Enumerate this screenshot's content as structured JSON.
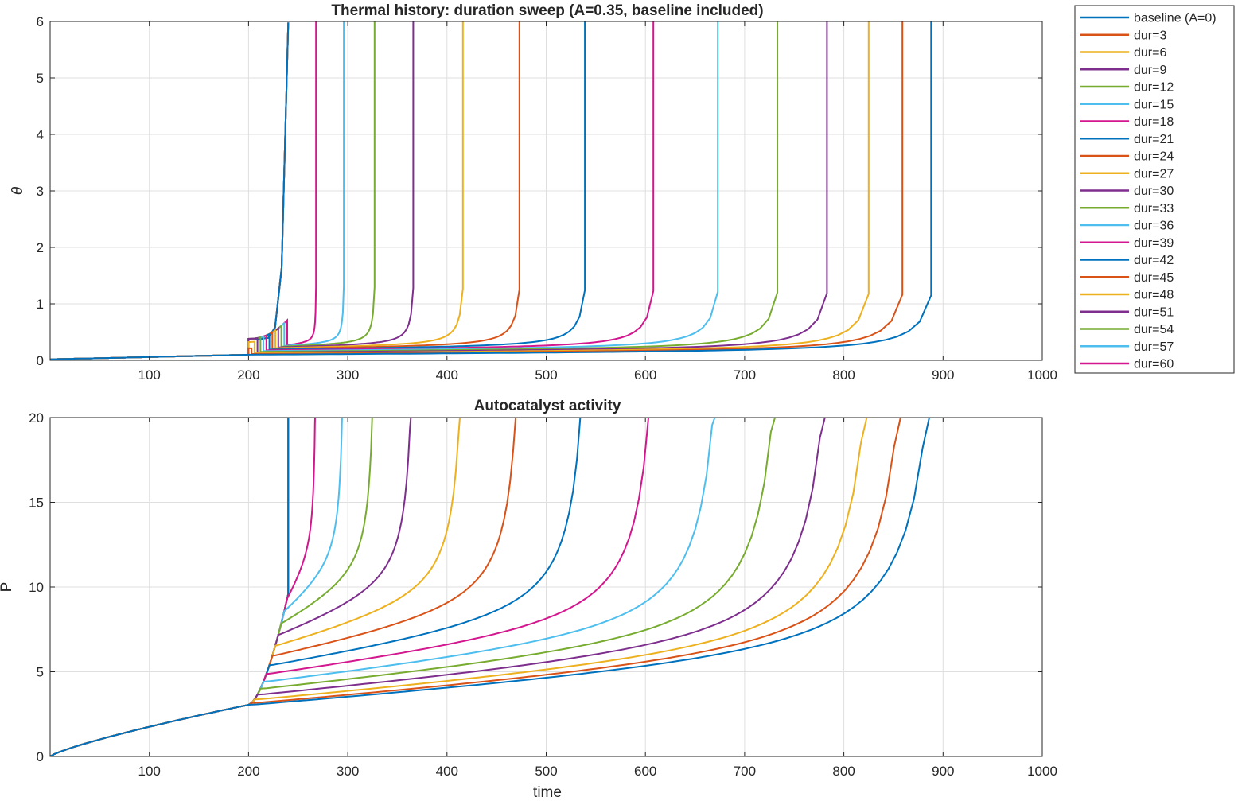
{
  "chart_data": [
    {
      "type": "line",
      "title": "Thermal history: duration sweep (A=0.35, baseline included)",
      "xlabel": "",
      "ylabel": "θ",
      "xlim": [
        0,
        1000
      ],
      "ylim": [
        0,
        6
      ],
      "xticks": [
        100,
        200,
        300,
        400,
        500,
        600,
        700,
        800,
        900,
        1000
      ],
      "yticks": [
        0,
        1,
        2,
        3,
        4,
        5,
        6
      ],
      "grid": true,
      "pulse_start": 200,
      "series": [
        {
          "name": "baseline (A=0)",
          "color": "#0072BD",
          "blowup_time": 888
        },
        {
          "name": "dur=3",
          "color": "#D95319",
          "blowup_time": 859
        },
        {
          "name": "dur=6",
          "color": "#EDB120",
          "blowup_time": 825
        },
        {
          "name": "dur=9",
          "color": "#7E2F8E",
          "blowup_time": 783
        },
        {
          "name": "dur=12",
          "color": "#77AC30",
          "blowup_time": 733
        },
        {
          "name": "dur=15",
          "color": "#4DBEEE",
          "blowup_time": 673
        },
        {
          "name": "dur=18",
          "color": "#D3178E",
          "blowup_time": 608
        },
        {
          "name": "dur=21",
          "color": "#0072BD",
          "blowup_time": 539
        },
        {
          "name": "dur=24",
          "color": "#D95319",
          "blowup_time": 473
        },
        {
          "name": "dur=27",
          "color": "#EDB120",
          "blowup_time": 416
        },
        {
          "name": "dur=30",
          "color": "#7E2F8E",
          "blowup_time": 366
        },
        {
          "name": "dur=33",
          "color": "#77AC30",
          "blowup_time": 327
        },
        {
          "name": "dur=36",
          "color": "#4DBEEE",
          "blowup_time": 296
        },
        {
          "name": "dur=39",
          "color": "#D3178E",
          "blowup_time": 268
        },
        {
          "name": "dur=42",
          "color": "#0072BD",
          "blowup_time": 240
        },
        {
          "name": "dur=45",
          "color": "#D95319",
          "blowup_time": 240
        },
        {
          "name": "dur=48",
          "color": "#EDB120",
          "blowup_time": 240
        },
        {
          "name": "dur=51",
          "color": "#7E2F8E",
          "blowup_time": 240
        },
        {
          "name": "dur=54",
          "color": "#77AC30",
          "blowup_time": 240
        },
        {
          "name": "dur=57",
          "color": "#4DBEEE",
          "blowup_time": 240
        },
        {
          "name": "dur=60",
          "color": "#D3178E",
          "blowup_time": 240
        }
      ]
    },
    {
      "type": "line",
      "title": "Autocatalyst activity",
      "xlabel": "time",
      "ylabel": "P",
      "xlim": [
        0,
        1000
      ],
      "ylim": [
        0,
        20
      ],
      "xticks": [
        100,
        200,
        300,
        400,
        500,
        600,
        700,
        800,
        900,
        1000
      ],
      "yticks": [
        0,
        5,
        10,
        15,
        20
      ],
      "grid": true,
      "P_at_pulse_start": 3.05,
      "series_P_after_pulse": [
        3.05,
        3.3,
        3.55,
        3.8,
        4.1,
        4.45,
        4.75,
        5.15,
        5.55,
        6.05,
        6.6,
        7.3,
        8.15,
        9.6,
        10.5,
        11.5,
        12.6,
        13.8,
        15.1,
        16.6,
        18.2
      ]
    }
  ],
  "legend": {
    "placement": "outside-right",
    "entries": [
      "baseline (A=0)",
      "dur=3",
      "dur=6",
      "dur=9",
      "dur=12",
      "dur=15",
      "dur=18",
      "dur=21",
      "dur=24",
      "dur=27",
      "dur=30",
      "dur=33",
      "dur=36",
      "dur=39",
      "dur=42",
      "dur=45",
      "dur=48",
      "dur=51",
      "dur=54",
      "dur=57",
      "dur=60"
    ]
  }
}
